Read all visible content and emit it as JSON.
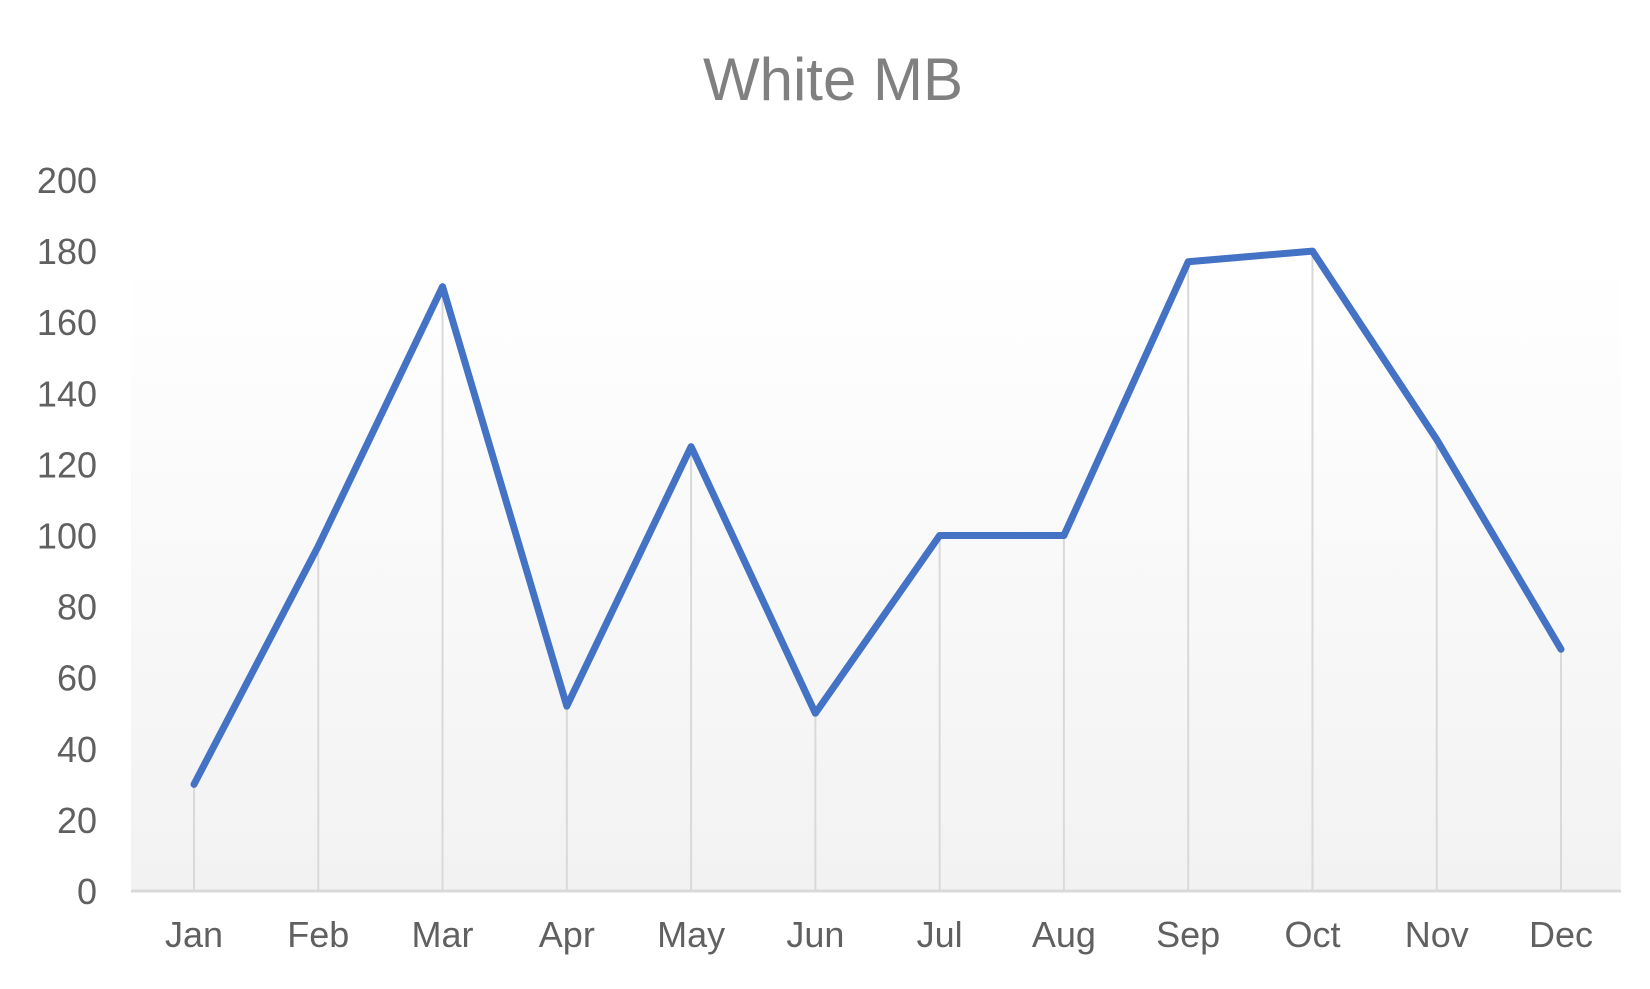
{
  "chart_data": {
    "type": "line",
    "title": "White MB",
    "xlabel": "",
    "ylabel": "",
    "categories": [
      "Jan",
      "Feb",
      "Mar",
      "Apr",
      "May",
      "Jun",
      "Jul",
      "Aug",
      "Sep",
      "Oct",
      "Nov",
      "Dec"
    ],
    "series": [
      {
        "values": [
          30,
          97,
          170,
          52,
          125,
          50,
          100,
          100,
          177,
          180,
          127,
          68
        ]
      }
    ],
    "ylim": [
      0,
      200
    ],
    "yticks": [
      "0",
      "20",
      "40",
      "60",
      "80",
      "100",
      "120",
      "140",
      "160",
      "180",
      "200"
    ],
    "grid": "vertical drop lines",
    "legend": "none"
  },
  "colors": {
    "series": "#4472C4",
    "title": "#808080",
    "ticks": "#606060",
    "droplines": "#D9D9D9",
    "axis": "#D9D9D9",
    "plot_bg_top": "#FFFFFF",
    "plot_bg_bottom": "#F2F2F2"
  }
}
